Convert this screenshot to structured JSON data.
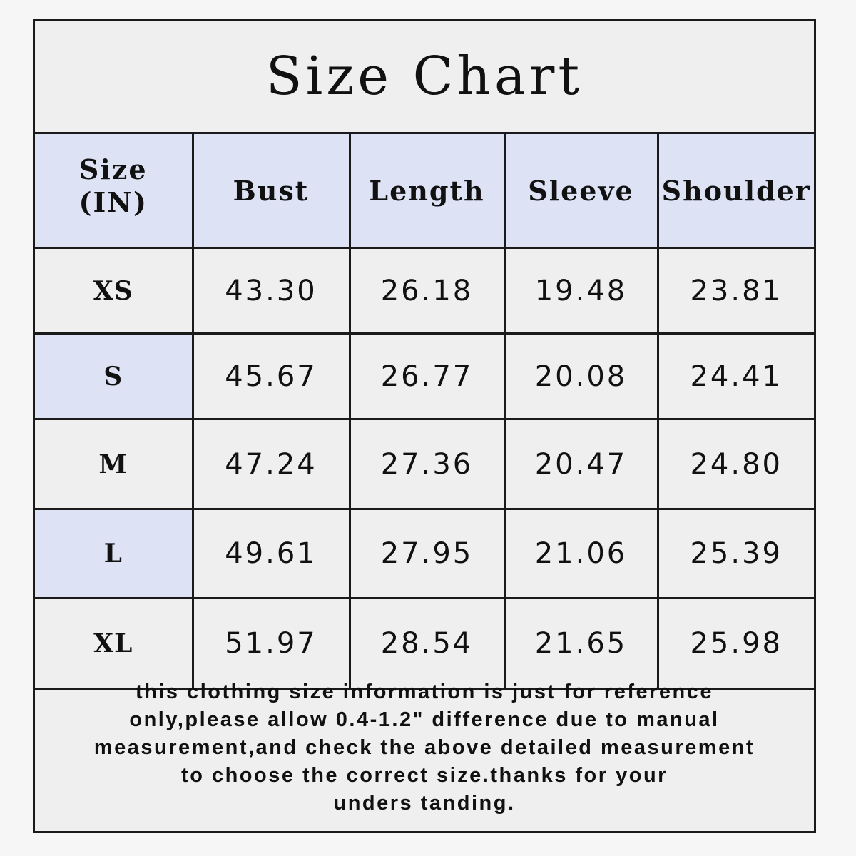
{
  "title": "Size Chart",
  "table": {
    "headers": [
      "Size\n(IN)",
      "Bust",
      "Length",
      "Sleeve",
      "Shoulder"
    ],
    "size_header_line1": "Size",
    "size_header_line2": "(IN)",
    "rows": [
      {
        "size": "XS",
        "bust": "43.30",
        "length": "26.18",
        "sleeve": "19.48",
        "shoulder": "23.81",
        "highlight": false
      },
      {
        "size": "S",
        "bust": "45.67",
        "length": "26.77",
        "sleeve": "20.08",
        "shoulder": "24.41",
        "highlight": true
      },
      {
        "size": "M",
        "bust": "47.24",
        "length": "27.36",
        "sleeve": "20.47",
        "shoulder": "24.80",
        "highlight": false
      },
      {
        "size": "L",
        "bust": "49.61",
        "length": "27.95",
        "sleeve": "21.06",
        "shoulder": "25.39",
        "highlight": true
      },
      {
        "size": "XL",
        "bust": "51.97",
        "length": "28.54",
        "sleeve": "21.65",
        "shoulder": "25.98",
        "highlight": false
      }
    ]
  },
  "note": {
    "lines": [
      "this clothing size information is just for reference",
      "only,please allow 0.4-1.2\" difference due to manual",
      "measurement,and check the above detailed measurement",
      "to choose the correct size.thanks for your",
      "unders tanding."
    ]
  },
  "colors": {
    "header_bg": "#dde2f4",
    "cell_bg": "#efefef",
    "border": "#1a1a1a"
  }
}
